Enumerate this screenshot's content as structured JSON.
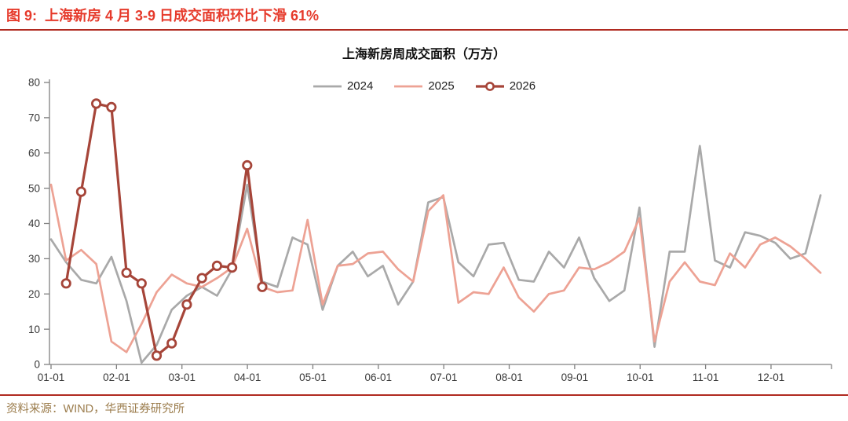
{
  "figure": {
    "title": "图 9:  上海新房 4 月 3-9 日成交面积环比下滑 61%",
    "source": "资料来源：WIND，华西证券研究所"
  },
  "chart_data": {
    "type": "line",
    "title": "上海新房周成交面积（万方）",
    "unit": "万方",
    "frequency": "weekly",
    "legend_position": "top-center",
    "grid": false,
    "ylim": [
      0,
      80
    ],
    "y_ticks": [
      0,
      10,
      20,
      30,
      40,
      50,
      60,
      70,
      80
    ],
    "x_tick_labels": [
      "01-01",
      "02-01",
      "03-01",
      "04-01",
      "05-01",
      "06-01",
      "07-01",
      "08-01",
      "09-01",
      "10-01",
      "11-01",
      "12-01"
    ],
    "axis_color": "#808080",
    "marker_fill": "#ffffff",
    "series": [
      {
        "name": "2024",
        "color": "#a9a9a9",
        "marker": "none",
        "start_week": 1,
        "values": [
          35.5,
          29,
          24,
          23,
          30.5,
          18,
          0.5,
          5.5,
          15.5,
          19.5,
          22,
          19.5,
          27,
          51,
          23.5,
          22,
          36,
          34,
          15.5,
          28,
          32,
          25,
          28,
          17,
          23.5,
          46,
          47.5,
          29,
          25,
          34,
          34.5,
          24,
          23.5,
          32,
          27.5,
          36,
          24.5,
          18,
          21,
          44.5,
          5,
          32,
          32,
          62,
          29.5,
          27.5,
          37.5,
          36.5,
          34.5,
          30,
          31.5,
          48
        ]
      },
      {
        "name": "2025",
        "color": "#eda294",
        "marker": "none",
        "start_week": 1,
        "values": [
          51,
          29.5,
          32.5,
          28.5,
          6.5,
          3.5,
          11.5,
          20.5,
          25.5,
          23,
          22,
          24.5,
          27.5,
          38.5,
          22,
          20.5,
          21,
          41,
          17,
          28,
          28.5,
          31.5,
          32,
          27,
          23.5,
          43.5,
          48,
          17.5,
          20.5,
          20,
          27.5,
          19,
          15,
          20,
          21,
          27.5,
          27,
          29,
          32,
          41.5,
          6.5,
          23.5,
          29,
          23.5,
          22.5,
          31.5,
          27.5,
          34,
          36,
          33.5,
          30,
          26
        ]
      },
      {
        "name": "2026",
        "color": "#a64539",
        "marker": "circle",
        "start_week": 2,
        "values": [
          23,
          49,
          74,
          73,
          26,
          23,
          2.5,
          6,
          17,
          24.5,
          28,
          27.5,
          56.5,
          22
        ]
      }
    ]
  }
}
